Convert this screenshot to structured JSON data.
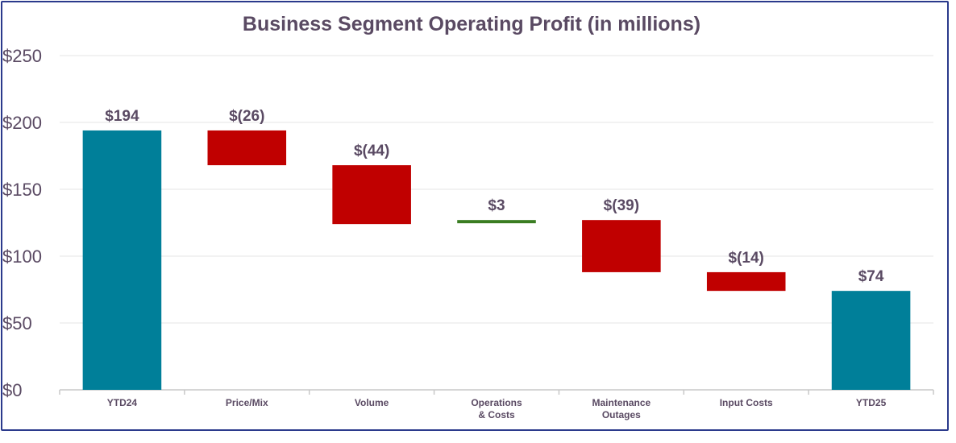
{
  "chart_data": {
    "type": "waterfall",
    "title": "Business Segment Operating Profit (in millions)",
    "xlabel": "",
    "ylabel": "",
    "ylim": [
      0,
      250
    ],
    "yticks": [
      0,
      50,
      100,
      150,
      200,
      250
    ],
    "ytick_labels": [
      "$0",
      "$50",
      "$100",
      "$150",
      "$200",
      "$250"
    ],
    "grid": true,
    "categories": [
      {
        "label": [
          "YTD24"
        ],
        "kind": "total",
        "value": 194,
        "data_label": "$194"
      },
      {
        "label": [
          "Price/Mix"
        ],
        "kind": "delta",
        "value": -26,
        "data_label": "$(26)"
      },
      {
        "label": [
          "Volume"
        ],
        "kind": "delta",
        "value": -44,
        "data_label": "$(44)"
      },
      {
        "label": [
          "Operations",
          "& Costs"
        ],
        "kind": "delta",
        "value": 3,
        "data_label": "$3"
      },
      {
        "label": [
          "Maintenance",
          "Outages"
        ],
        "kind": "delta",
        "value": -39,
        "data_label": "$(39)"
      },
      {
        "label": [
          "Input Costs"
        ],
        "kind": "delta",
        "value": -14,
        "data_label": "$(14)"
      },
      {
        "label": [
          "YTD25"
        ],
        "kind": "total",
        "value": 74,
        "data_label": "$74"
      }
    ],
    "colors": {
      "total": "#007f99",
      "decrease": "#c00000",
      "increase": "#3a7d22",
      "text": "#5a4a63",
      "grid": "#e4e4e4",
      "axis": "#c8c8c8"
    }
  }
}
